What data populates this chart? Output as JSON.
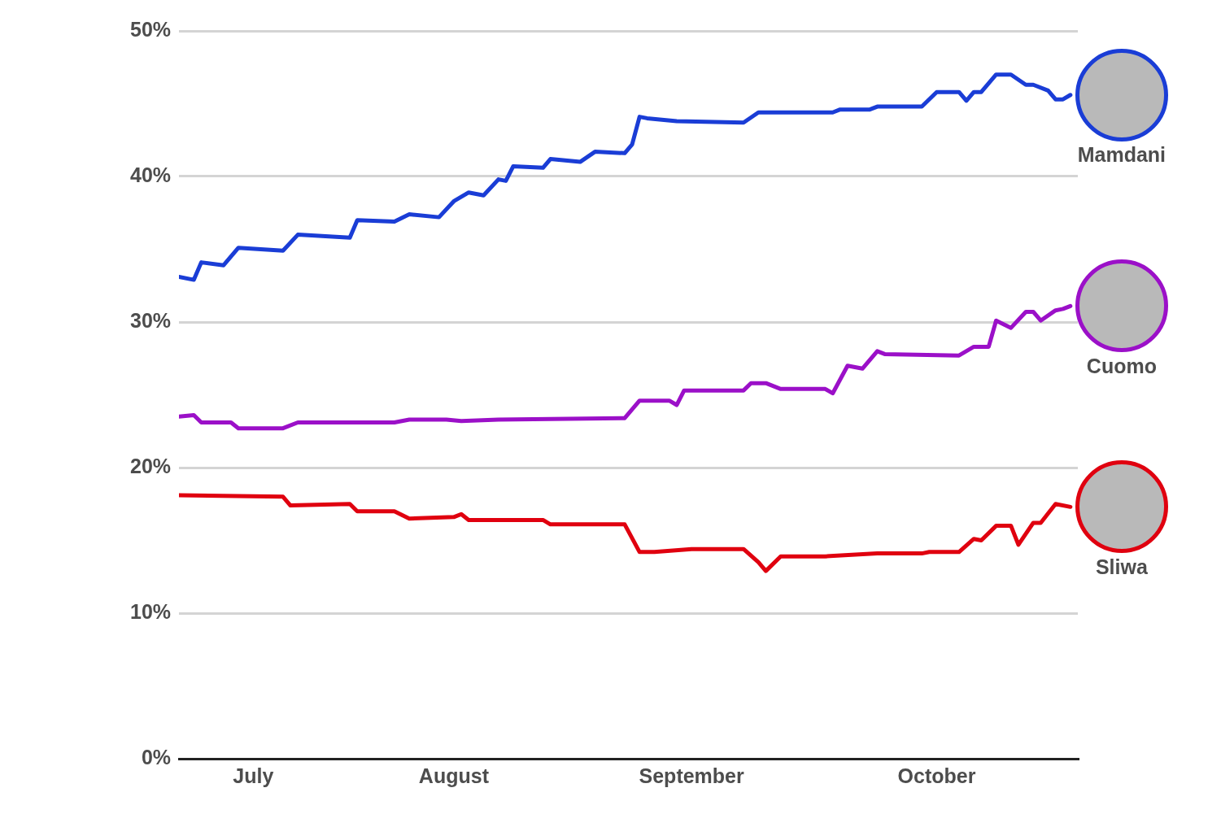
{
  "chart_data": {
    "type": "line",
    "xlim": [
      "--07-06",
      "--11-04"
    ],
    "xticks": [
      {
        "value": "--07-16",
        "label": "July"
      },
      {
        "value": "--08-12",
        "label": "August"
      },
      {
        "value": "--09-13",
        "label": "September"
      },
      {
        "value": "--10-16",
        "label": "October"
      }
    ],
    "ylim": [
      0,
      50
    ],
    "yticks": [
      {
        "value": 0,
        "label": "0%"
      },
      {
        "value": 10,
        "label": "10%"
      },
      {
        "value": 20,
        "label": "20%"
      },
      {
        "value": 30,
        "label": "30%"
      },
      {
        "value": 40,
        "label": "40%"
      },
      {
        "value": 50,
        "label": "50%"
      }
    ],
    "grid": "y",
    "legend": false,
    "marker": "none",
    "line_style": "solid",
    "series": [
      {
        "name": "Mamdani",
        "color": "#1a3dd6",
        "x": [
          "--07-06",
          "--07-08",
          "--07-09",
          "--07-12",
          "--07-14",
          "--07-20",
          "--07-22",
          "--07-29",
          "--07-30",
          "--08-04",
          "--08-06",
          "--08-10",
          "--08-12",
          "--08-14",
          "--08-16",
          "--08-18",
          "--08-19",
          "--08-20",
          "--08-24",
          "--08-25",
          "--08-29",
          "--08-31",
          "--09-04",
          "--09-05",
          "--09-06",
          "--09-07",
          "--09-11",
          "--09-20",
          "--09-22",
          "--10-02",
          "--10-03",
          "--10-07",
          "--10-08",
          "--10-14",
          "--10-16",
          "--10-19",
          "--10-20",
          "--10-21",
          "--10-22",
          "--10-24",
          "--10-26",
          "--10-28",
          "--10-29",
          "--10-31",
          "--11-01",
          "--11-02",
          "--11-03"
        ],
        "values": [
          33.1,
          32.9,
          34.1,
          33.9,
          35.1,
          34.9,
          36.0,
          35.8,
          37.0,
          36.9,
          37.4,
          37.2,
          38.3,
          38.9,
          38.7,
          39.8,
          39.7,
          40.7,
          40.6,
          41.2,
          41.0,
          41.7,
          41.6,
          42.2,
          44.1,
          44.0,
          43.8,
          43.7,
          44.4,
          44.4,
          44.6,
          44.6,
          44.8,
          44.8,
          45.8,
          45.8,
          45.2,
          45.8,
          45.8,
          47.0,
          47.0,
          46.3,
          46.3,
          45.9,
          45.3,
          45.3,
          45.6
        ]
      },
      {
        "name": "Cuomo",
        "color": "#9b10c8",
        "x": [
          "--07-06",
          "--07-08",
          "--07-09",
          "--07-13",
          "--07-14",
          "--07-20",
          "--07-22",
          "--08-04",
          "--08-06",
          "--08-11",
          "--08-13",
          "--08-18",
          "--09-04",
          "--09-06",
          "--09-10",
          "--09-11",
          "--09-12",
          "--09-20",
          "--09-21",
          "--09-23",
          "--09-25",
          "--10-01",
          "--10-02",
          "--10-04",
          "--10-06",
          "--10-08",
          "--10-09",
          "--10-19",
          "--10-21",
          "--10-23",
          "--10-24",
          "--10-26",
          "--10-28",
          "--10-29",
          "--10-30",
          "--11-01",
          "--11-02",
          "--11-03"
        ],
        "values": [
          23.5,
          23.6,
          23.1,
          23.1,
          22.7,
          22.7,
          23.1,
          23.1,
          23.3,
          23.3,
          23.2,
          23.3,
          23.4,
          24.6,
          24.6,
          24.3,
          25.3,
          25.3,
          25.8,
          25.8,
          25.4,
          25.4,
          25.1,
          27.0,
          26.8,
          28.0,
          27.8,
          27.7,
          28.3,
          28.3,
          30.1,
          29.6,
          30.7,
          30.7,
          30.1,
          30.8,
          30.9,
          31.1
        ]
      },
      {
        "name": "Sliwa",
        "color": "#e0000f",
        "x": [
          "--07-06",
          "--07-20",
          "--07-21",
          "--07-29",
          "--07-30",
          "--08-04",
          "--08-06",
          "--08-12",
          "--08-13",
          "--08-14",
          "--08-24",
          "--08-25",
          "--09-04",
          "--09-06",
          "--09-08",
          "--09-13",
          "--09-20",
          "--09-22",
          "--09-23",
          "--09-25",
          "--10-01",
          "--10-08",
          "--10-14",
          "--10-15",
          "--10-19",
          "--10-21",
          "--10-22",
          "--10-24",
          "--10-26",
          "--10-27",
          "--10-29",
          "--10-30",
          "--11-01",
          "--11-03"
        ],
        "values": [
          18.1,
          18.0,
          17.4,
          17.5,
          17.0,
          17.0,
          16.5,
          16.6,
          16.8,
          16.4,
          16.4,
          16.1,
          16.1,
          14.2,
          14.2,
          14.4,
          14.4,
          13.5,
          12.9,
          13.9,
          13.9,
          14.1,
          14.1,
          14.2,
          14.2,
          15.1,
          15.0,
          16.0,
          16.0,
          14.7,
          16.2,
          16.2,
          17.5,
          17.3
        ]
      }
    ]
  }
}
